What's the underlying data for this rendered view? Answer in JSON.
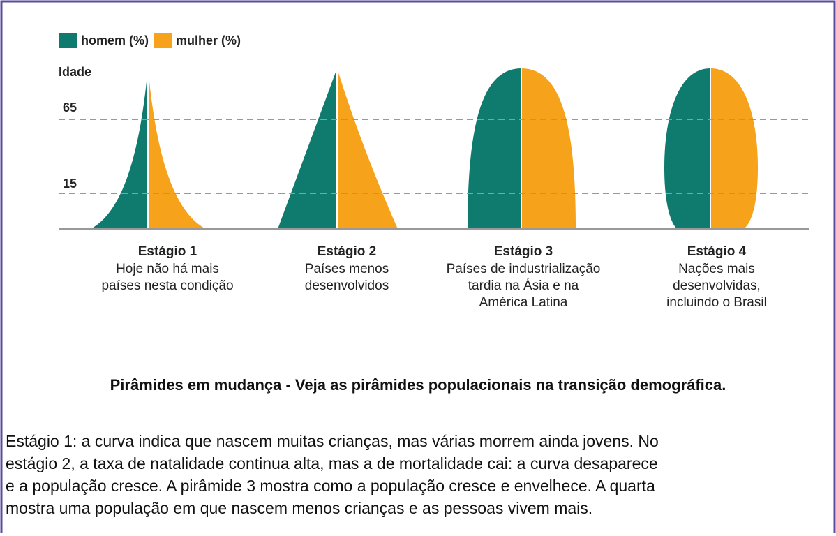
{
  "legend": {
    "male": "homem (%)",
    "female": "mulher (%)"
  },
  "axis": {
    "label": "Idade",
    "marks": [
      "65",
      "15"
    ]
  },
  "stages": [
    {
      "title": "Estágio 1",
      "lines": [
        "Hoje não há mais",
        "países nesta condição"
      ]
    },
    {
      "title": "Estágio 2",
      "lines": [
        "Países menos",
        "desenvolvidos"
      ]
    },
    {
      "title": "Estágio 3",
      "lines": [
        "Países de industrialização",
        "tardia na Ásia e na",
        "América Latina"
      ]
    },
    {
      "title": "Estágio 4",
      "lines": [
        "Nações mais",
        "desenvolvidas,",
        "incluindo o Brasil"
      ]
    }
  ],
  "caption": "Pirâmides em mudança - Veja as pirâmides populacionais na transição demográfica.",
  "paragraph": [
    "Estágio 1: a curva indica que nascem muitas crianças, mas várias morrem ainda jovens. No",
    "estágio 2, a taxa de natalidade continua alta, mas a de mortalidade cai: a curva desaparece",
    "e a população cresce. A pirâmide 3 mostra como a população cresce e envelhece. A quarta",
    "mostra uma população em que nascem menos crianças e as pessoas vivem mais."
  ]
}
